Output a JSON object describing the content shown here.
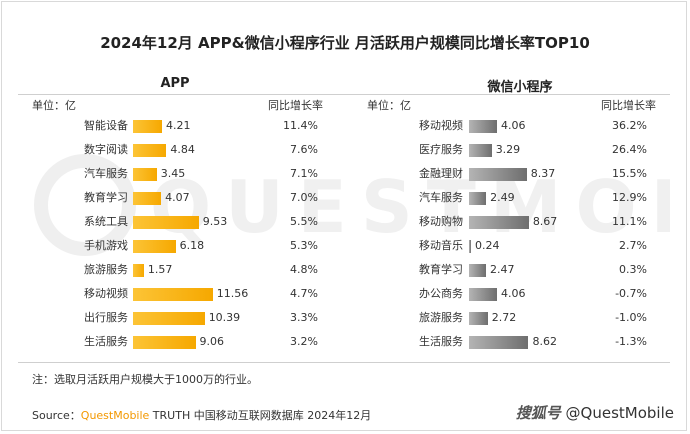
{
  "title": "2024年12月 APP&微信小程序行业 月活跃用户规模同比增长率TOP10",
  "note": "注：选取月活跃用户规模大于1000万的行业。",
  "source": {
    "prefix": "Source：",
    "brand": "QuestMobile",
    "rest": " TRUTH 中国移动互联网数据库 2024年12月"
  },
  "credit": {
    "platform": "搜狐号",
    "handle": "@QuestMobile"
  },
  "watermark_text": "QUESTMOBILE",
  "colors": {
    "app_bar": "#f6a800",
    "mini_bar": "#6e6e6e",
    "brand": "#f39800"
  },
  "chart_data": [
    {
      "type": "bar",
      "title": "APP",
      "unit_label": "单位：亿",
      "growth_header": "同比增长率",
      "categories": [
        "智能设备",
        "数字阅读",
        "汽车服务",
        "教育学习",
        "系统工具",
        "手机游戏",
        "旅游服务",
        "移动视频",
        "出行服务",
        "生活服务"
      ],
      "values": [
        4.21,
        4.84,
        3.45,
        4.07,
        9.53,
        6.18,
        1.57,
        11.56,
        10.39,
        9.06
      ],
      "value_labels": [
        "4.21",
        "4.84",
        "3.45",
        "4.07",
        "9.53",
        "6.18",
        "1.57",
        "11.56",
        "10.39",
        "9.06"
      ],
      "growth_labels": [
        "11.4%",
        "7.6%",
        "7.1%",
        "7.0%",
        "5.5%",
        "5.3%",
        "4.8%",
        "4.7%",
        "3.3%",
        "3.2%"
      ]
    },
    {
      "type": "bar",
      "title": "微信小程序",
      "unit_label": "单位：亿",
      "growth_header": "同比增长率",
      "categories": [
        "移动视频",
        "医疗服务",
        "金融理财",
        "汽车服务",
        "移动购物",
        "移动音乐",
        "教育学习",
        "办公商务",
        "旅游服务",
        "生活服务"
      ],
      "values": [
        4.06,
        3.29,
        8.37,
        2.49,
        8.67,
        0.24,
        2.47,
        4.06,
        2.72,
        8.62
      ],
      "value_labels": [
        "4.06",
        "3.29",
        "8.37",
        "2.49",
        "8.67",
        "0.24",
        "2.47",
        "4.06",
        "2.72",
        "8.62"
      ],
      "growth_labels": [
        "36.2%",
        "26.4%",
        "15.5%",
        "12.9%",
        "11.1%",
        "2.7%",
        "0.3%",
        "-0.7%",
        "-1.0%",
        "-1.3%"
      ]
    }
  ]
}
